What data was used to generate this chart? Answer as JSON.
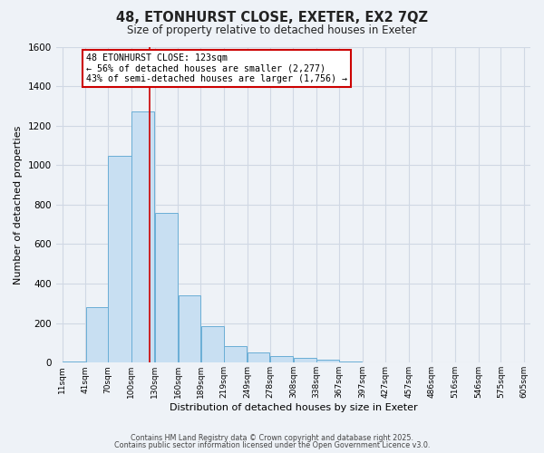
{
  "title": "48, ETONHURST CLOSE, EXETER, EX2 7QZ",
  "subtitle": "Size of property relative to detached houses in Exeter",
  "xlabel": "Distribution of detached houses by size in Exeter",
  "ylabel": "Number of detached properties",
  "bar_left_edges": [
    11,
    41,
    70,
    100,
    130,
    160,
    189,
    219,
    249,
    278,
    308,
    338,
    367,
    397,
    427,
    457,
    486,
    516,
    546,
    575
  ],
  "bar_widths": [
    30,
    29,
    30,
    30,
    30,
    29,
    30,
    30,
    29,
    30,
    30,
    29,
    30,
    30,
    30,
    29,
    30,
    30,
    29,
    30
  ],
  "bar_heights": [
    5,
    280,
    1045,
    1270,
    760,
    340,
    185,
    85,
    50,
    35,
    25,
    15,
    8,
    3,
    2,
    1,
    0,
    0,
    0,
    0
  ],
  "bar_color": "#c8dff2",
  "bar_edge_color": "#6aaed6",
  "tick_labels": [
    "11sqm",
    "41sqm",
    "70sqm",
    "100sqm",
    "130sqm",
    "160sqm",
    "189sqm",
    "219sqm",
    "249sqm",
    "278sqm",
    "308sqm",
    "338sqm",
    "367sqm",
    "397sqm",
    "427sqm",
    "457sqm",
    "486sqm",
    "516sqm",
    "546sqm",
    "575sqm",
    "605sqm"
  ],
  "ylim": [
    0,
    1600
  ],
  "yticks": [
    0,
    200,
    400,
    600,
    800,
    1000,
    1200,
    1400,
    1600
  ],
  "vline_x": 123,
  "vline_color": "#cc0000",
  "annotation_text": "48 ETONHURST CLOSE: 123sqm\n← 56% of detached houses are smaller (2,277)\n43% of semi-detached houses are larger (1,756) →",
  "annotation_box_color": "#cc0000",
  "annotation_bg": "#ffffff",
  "footer_line1": "Contains HM Land Registry data © Crown copyright and database right 2025.",
  "footer_line2": "Contains public sector information licensed under the Open Government Licence v3.0.",
  "background_color": "#eef2f7",
  "plot_bg_color": "#eef2f7",
  "grid_color": "#d0d8e4"
}
